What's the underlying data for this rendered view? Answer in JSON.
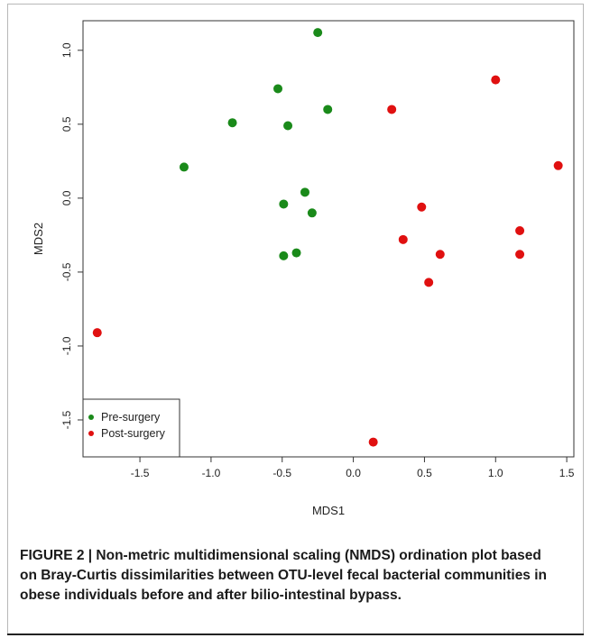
{
  "chart_data": {
    "type": "scatter",
    "xlabel": "MDS1",
    "ylabel": "MDS2",
    "xlim": [
      -1.9,
      1.55
    ],
    "ylim": [
      -1.75,
      1.2
    ],
    "x_ticks": [
      "-1.5",
      "-1.0",
      "-0.5",
      "0.0",
      "0.5",
      "1.0",
      "1.5"
    ],
    "y_ticks": [
      "-1.5",
      "-1.0",
      "-0.5",
      "0.0",
      "0.5",
      "1.0"
    ],
    "grid": false,
    "legend_position": "bottom-left",
    "series": [
      {
        "name": "Pre-surgery",
        "color": "#1a8a1a",
        "points": [
          {
            "x": -0.25,
            "y": 1.12
          },
          {
            "x": -0.53,
            "y": 0.74
          },
          {
            "x": -0.18,
            "y": 0.6
          },
          {
            "x": -0.85,
            "y": 0.51
          },
          {
            "x": -0.46,
            "y": 0.49
          },
          {
            "x": -1.19,
            "y": 0.21
          },
          {
            "x": -0.34,
            "y": 0.04
          },
          {
            "x": -0.49,
            "y": -0.04
          },
          {
            "x": -0.29,
            "y": -0.1
          },
          {
            "x": -0.4,
            "y": -0.37
          },
          {
            "x": -0.49,
            "y": -0.39
          }
        ]
      },
      {
        "name": "Post-surgery",
        "color": "#e01010",
        "points": [
          {
            "x": 1.0,
            "y": 0.8
          },
          {
            "x": 0.27,
            "y": 0.6
          },
          {
            "x": 1.44,
            "y": 0.22
          },
          {
            "x": 0.48,
            "y": -0.06
          },
          {
            "x": 1.17,
            "y": -0.22
          },
          {
            "x": 0.35,
            "y": -0.28
          },
          {
            "x": 0.61,
            "y": -0.38
          },
          {
            "x": 1.17,
            "y": -0.38
          },
          {
            "x": 0.53,
            "y": -0.57
          },
          {
            "x": -1.8,
            "y": -0.91
          },
          {
            "x": 0.14,
            "y": -1.65
          }
        ]
      }
    ]
  },
  "caption": "FIGURE 2 | Non-metric multidimensional scaling (NMDS) ordination plot based on Bray-Curtis dissimilarities between OTU-level fecal bacterial communities in obese individuals before and after bilio-intestinal bypass."
}
